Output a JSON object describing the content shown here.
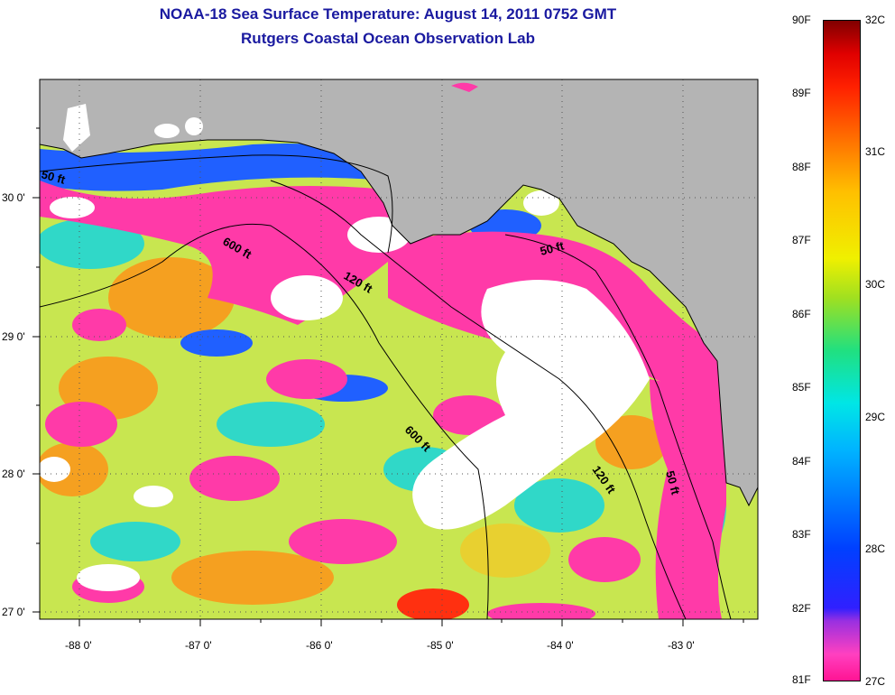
{
  "title": "NOAA-18 Sea Surface Temperature:  August 14, 2011 0752 GMT",
  "subtitle": "Rutgers Coastal Ocean Observation Lab",
  "map": {
    "lon_labels": [
      "-88 0'",
      "-87 0'",
      "-86 0'",
      "-85 0'",
      "-84 0'",
      "-83 0'"
    ],
    "lat_labels": [
      "30 0'",
      "29 0'",
      "28 0'",
      "27 0'"
    ],
    "contours": [
      {
        "label": "50 ft",
        "depth_ft": 50
      },
      {
        "label": "600 ft",
        "depth_ft": 600
      },
      {
        "label": "120 ft",
        "depth_ft": 120
      },
      {
        "label": "50 ft",
        "depth_ft": 50
      },
      {
        "label": "600 ft",
        "depth_ft": 600
      },
      {
        "label": "120 ft",
        "depth_ft": 120
      },
      {
        "label": "50 ft",
        "depth_ft": 50
      }
    ],
    "colors": {
      "land": "#b4b4b4",
      "cloud": "#ffffff"
    }
  },
  "colorbar": {
    "f_labels": [
      "90F",
      "89F",
      "88F",
      "87F",
      "86F",
      "85F",
      "84F",
      "83F",
      "82F",
      "81F"
    ],
    "c_labels": [
      "32C",
      "31C",
      "30C",
      "29C",
      "28C",
      "27C"
    ]
  }
}
